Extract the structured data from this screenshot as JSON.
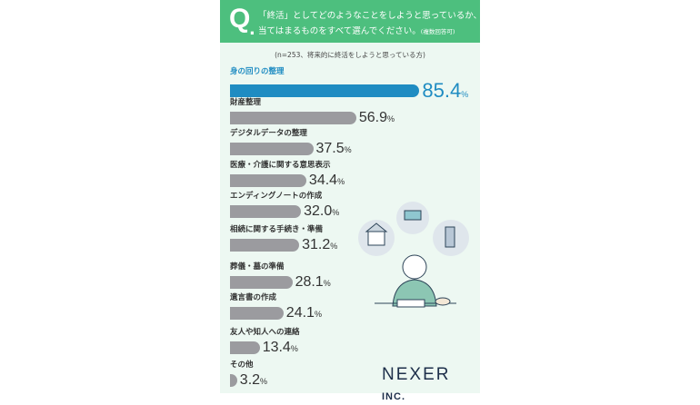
{
  "header": {
    "q": "Q",
    "line1": "「終活」としてどのようなことをしようと思っているか、",
    "line2": "当てはまるものをすべて選んでください。",
    "note": "(複数回答可)"
  },
  "sample": "(n=253、将来的に終活をしようと思っている方)",
  "logo": {
    "main": "NEXER",
    "suffix": "INC."
  },
  "chart_data": {
    "type": "bar",
    "orientation": "horizontal",
    "xlim": [
      0,
      100
    ],
    "unit": "%",
    "categories": [
      "身の回りの整理",
      "財産整理",
      "デジタルデータの整理",
      "医療・介護に関する意思表示",
      "エンディングノートの作成",
      "相続に関する手続き・準備",
      "葬儀・墓の準備",
      "遺言書の作成",
      "友人や知人への連絡",
      "その他"
    ],
    "values": [
      85.4,
      56.9,
      37.5,
      34.4,
      32.0,
      31.2,
      28.1,
      24.1,
      13.4,
      3.2
    ],
    "labels": [
      "85.4",
      "56.9",
      "37.5",
      "34.4",
      "32.0",
      "31.2",
      "28.1",
      "24.1",
      "13.4",
      "3.2"
    ],
    "highlight_color": "#1f8cc2",
    "bar_color": "#9b9b9f"
  }
}
